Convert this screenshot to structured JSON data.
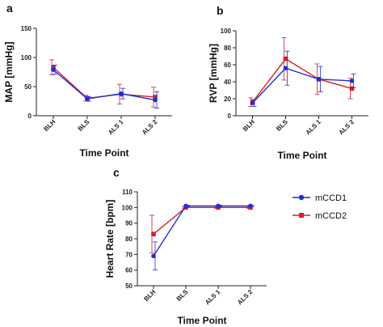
{
  "colors": {
    "mCCD1": "#1f2fd6",
    "mCCD2": "#d6202a"
  },
  "legend": {
    "series_1": "mCCD1",
    "series_2": "mCCD2"
  },
  "chart_data": [
    {
      "panel": "a",
      "type": "line",
      "categories": [
        "BLH",
        "BLS",
        "ALS 1",
        "ALS 2"
      ],
      "xlabel": "Time Point",
      "ylabel": "MAP [mmHg]",
      "ylim": [
        0,
        150
      ],
      "yticks": [
        0,
        50,
        100,
        150
      ],
      "series": [
        {
          "name": "mCCD1",
          "values": [
            79,
            29,
            38,
            27
          ],
          "err": [
            8,
            4,
            9,
            14
          ]
        },
        {
          "name": "mCCD2",
          "values": [
            83,
            30,
            37,
            32
          ],
          "err": [
            13,
            5,
            17,
            17
          ]
        }
      ]
    },
    {
      "panel": "b",
      "type": "line",
      "categories": [
        "BLH",
        "BLS",
        "ALS 1",
        "ALS 2"
      ],
      "xlabel": "Time Point",
      "ylabel": "RVP [mmHg]",
      "ylim": [
        0,
        100
      ],
      "yticks": [
        0,
        20,
        40,
        60,
        80,
        100
      ],
      "series": [
        {
          "name": "mCCD1",
          "values": [
            15,
            56,
            43,
            41
          ],
          "err": [
            4,
            20,
            15,
            8
          ]
        },
        {
          "name": "mCCD2",
          "values": [
            16,
            67,
            43,
            32
          ],
          "err": [
            5,
            25,
            18,
            12
          ]
        }
      ]
    },
    {
      "panel": "c",
      "type": "line",
      "categories": [
        "BLH",
        "BLS",
        "ALS 1",
        "ALS 2"
      ],
      "xlabel": "Time Point",
      "ylabel": "Heart Rate [bpm]",
      "ylim": [
        50,
        110
      ],
      "yticks": [
        50,
        60,
        70,
        80,
        90,
        100,
        110
      ],
      "series": [
        {
          "name": "mCCD1",
          "values": [
            69,
            101,
            101,
            101
          ],
          "err": [
            9,
            0.5,
            0.5,
            0.5
          ]
        },
        {
          "name": "mCCD2",
          "values": [
            83,
            100,
            100,
            100
          ],
          "err": [
            12,
            0.5,
            0.5,
            0.5
          ]
        }
      ]
    }
  ]
}
